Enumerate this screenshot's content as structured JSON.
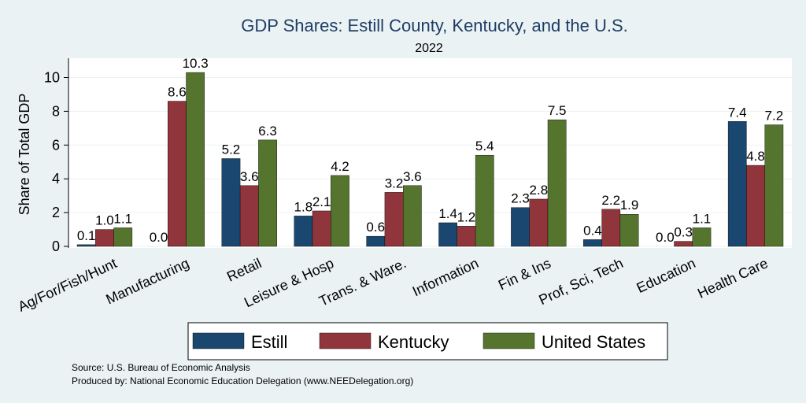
{
  "colors": {
    "background": "#eaf2f3",
    "plot_background": "#ffffff",
    "title": "#1f3d66"
  },
  "chart_data": {
    "type": "bar",
    "title": "GDP Shares: Estill County, Kentucky, and the U.S.",
    "subtitle": "2022",
    "xlabel": "",
    "ylabel": "Share of Total GDP",
    "ylim": [
      0,
      11
    ],
    "yticks": [
      0,
      2,
      4,
      6,
      8,
      10
    ],
    "grid": true,
    "legend_position": "bottom",
    "categories": [
      "Ag/For/Fish/Hunt",
      "Manufacturing",
      "Retail",
      "Leisure & Hosp",
      "Trans. & Ware.",
      "Information",
      "Fin & Ins",
      "Prof, Sci, Tech",
      "Education",
      "Health Care"
    ],
    "series": [
      {
        "name": "Estill",
        "color": "#1a476f",
        "values": [
          0.1,
          0.0,
          5.2,
          1.8,
          0.6,
          1.4,
          2.3,
          0.4,
          0.0,
          7.4
        ],
        "labels": [
          "0.1",
          "0.0",
          "5.2",
          "1.8",
          "0.6",
          "1.4",
          "2.3",
          "0.4",
          "0.0",
          "7.4"
        ]
      },
      {
        "name": "Kentucky",
        "color": "#90353b",
        "values": [
          1.0,
          8.6,
          3.6,
          2.1,
          3.2,
          1.2,
          2.8,
          2.2,
          0.3,
          4.8
        ],
        "labels": [
          "1.0",
          "8.6",
          "3.6",
          "2.1",
          "3.2",
          "1.2",
          "2.8",
          "2.2",
          "0.3",
          "4.8"
        ]
      },
      {
        "name": "United States",
        "color": "#55752f",
        "values": [
          1.1,
          10.3,
          6.3,
          4.2,
          3.6,
          5.4,
          7.5,
          1.9,
          1.1,
          7.2
        ],
        "labels": [
          "1.1",
          "10.3",
          "6.3",
          "4.2",
          "3.6",
          "5.4",
          "7.5",
          "1.9",
          "1.1",
          "7.2"
        ]
      }
    ]
  },
  "notes": {
    "source": "Source: U.S. Bureau of Economic Analysis",
    "produced_by": "Produced by: National Economic Education Delegation (www.NEEDelegation.org)"
  }
}
